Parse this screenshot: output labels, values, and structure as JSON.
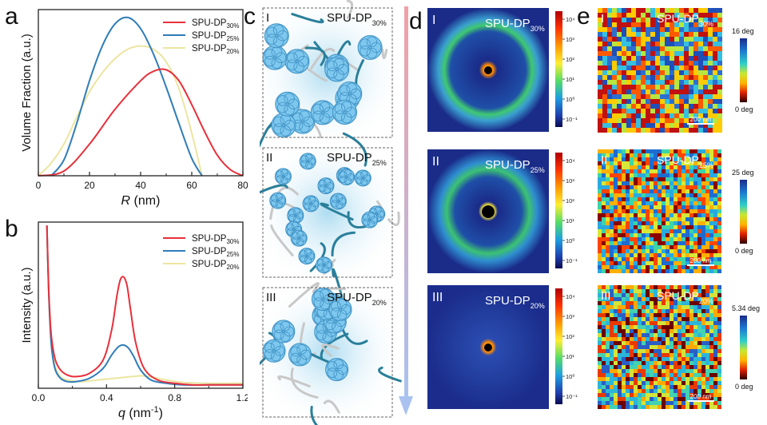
{
  "panels": {
    "a": "a",
    "b": "b",
    "c": "c",
    "d": "d",
    "e": "e"
  },
  "chart_data": [
    {
      "panel": "a",
      "type": "line",
      "title": "",
      "xlabel_var": "R",
      "xlabel_unit": "(nm)",
      "ylabel": "Volume Fraction (a.u.)",
      "xlim": [
        0,
        80
      ],
      "ylim": [
        0,
        1.05
      ],
      "xticks": [
        "0",
        "20",
        "40",
        "60",
        "80"
      ],
      "legend_position": "top-right",
      "series": [
        {
          "name": "SPU-DP",
          "sub": "30%",
          "color": "#e8303a",
          "x": [
            0,
            10,
            20,
            30,
            40,
            45,
            50,
            55,
            60,
            65,
            70,
            75,
            80
          ],
          "y": [
            0,
            0.03,
            0.2,
            0.42,
            0.6,
            0.66,
            0.67,
            0.6,
            0.45,
            0.28,
            0.13,
            0.04,
            0.0
          ]
        },
        {
          "name": "SPU-DP",
          "sub": "25%",
          "color": "#2f7cb8",
          "x": [
            5,
            10,
            15,
            20,
            25,
            30,
            35,
            40,
            45,
            50,
            55,
            60,
            64
          ],
          "y": [
            0,
            0.1,
            0.33,
            0.6,
            0.82,
            0.96,
            1.0,
            0.93,
            0.77,
            0.56,
            0.33,
            0.11,
            0.0
          ]
        },
        {
          "name": "SPU-DP",
          "sub": "20%",
          "color": "#ece5a0",
          "x": [
            0,
            5,
            10,
            15,
            20,
            25,
            30,
            35,
            40,
            45,
            50,
            55,
            60,
            64
          ],
          "y": [
            0,
            0.08,
            0.2,
            0.37,
            0.53,
            0.65,
            0.74,
            0.8,
            0.82,
            0.8,
            0.72,
            0.55,
            0.27,
            0.0
          ]
        }
      ]
    },
    {
      "panel": "b",
      "type": "line",
      "title": "",
      "xlabel_var": "q",
      "xlabel_unit": "(nm",
      "xlabel_exp": "-1",
      "xlabel_close": ")",
      "ylabel": "Intensity (a.u.)",
      "xlim": [
        0,
        1.2
      ],
      "ylim": [
        0,
        1.0
      ],
      "xticks": [
        "0.0",
        "0.4",
        "0.8",
        "1.2"
      ],
      "legend_position": "top-right",
      "series": [
        {
          "name": "SPU-DP",
          "sub": "30%",
          "color": "#e8303a",
          "x": [
            0.05,
            0.06,
            0.07,
            0.08,
            0.1,
            0.13,
            0.17,
            0.22,
            0.3,
            0.38,
            0.43,
            0.46,
            0.48,
            0.5,
            0.52,
            0.54,
            0.57,
            0.62,
            0.7,
            0.8,
            0.9,
            1.0,
            1.1,
            1.2
          ],
          "y": [
            0.98,
            0.62,
            0.4,
            0.28,
            0.17,
            0.11,
            0.08,
            0.07,
            0.09,
            0.17,
            0.35,
            0.55,
            0.65,
            0.67,
            0.62,
            0.48,
            0.28,
            0.12,
            0.05,
            0.03,
            0.02,
            0.02,
            0.02,
            0.02
          ]
        },
        {
          "name": "SPU-DP",
          "sub": "25%",
          "color": "#2f7cb8",
          "x": [
            0.05,
            0.06,
            0.07,
            0.08,
            0.1,
            0.13,
            0.17,
            0.22,
            0.3,
            0.38,
            0.43,
            0.47,
            0.5,
            0.53,
            0.56,
            0.6,
            0.66,
            0.75,
            0.85,
            1.0,
            1.2
          ],
          "y": [
            0.98,
            0.6,
            0.36,
            0.22,
            0.11,
            0.06,
            0.04,
            0.04,
            0.06,
            0.12,
            0.2,
            0.25,
            0.26,
            0.24,
            0.19,
            0.11,
            0.05,
            0.03,
            0.02,
            0.02,
            0.02
          ]
        },
        {
          "name": "SPU-DP",
          "sub": "20%",
          "color": "#ece5a0",
          "x": [
            0.05,
            0.06,
            0.07,
            0.08,
            0.1,
            0.13,
            0.17,
            0.25,
            0.35,
            0.45,
            0.55,
            0.6,
            0.65,
            0.75,
            0.85,
            1.0,
            1.2
          ],
          "y": [
            0.98,
            0.6,
            0.38,
            0.25,
            0.13,
            0.07,
            0.05,
            0.04,
            0.05,
            0.06,
            0.07,
            0.075,
            0.07,
            0.05,
            0.035,
            0.03,
            0.03
          ]
        }
      ]
    }
  ],
  "panel_c": [
    {
      "roman": "I",
      "name": "SPU-DP",
      "sub": "30%"
    },
    {
      "roman": "II",
      "name": "SPU-DP",
      "sub": "25%"
    },
    {
      "roman": "III",
      "name": "SPU-DP",
      "sub": "20%"
    }
  ],
  "panel_d": [
    {
      "roman": "I",
      "name": "SPU-DP",
      "sub": "30%",
      "ticks": [
        "10⁴",
        "10³",
        "10²",
        "10¹",
        "10⁰",
        "10⁻¹"
      ]
    },
    {
      "roman": "II",
      "name": "SPU-DP",
      "sub": "25%",
      "ticks": [
        "10⁴",
        "10³",
        "10²",
        "10¹",
        "10⁰",
        "10⁻¹"
      ]
    },
    {
      "roman": "III",
      "name": "SPU-DP",
      "sub": "20%",
      "ticks": [
        "10⁴",
        "10³",
        "10²",
        "10¹",
        "10⁰",
        "10⁻¹"
      ]
    }
  ],
  "panel_e": [
    {
      "roman": "I",
      "name": "SPU-DP",
      "sub": "30%",
      "max": "16 deg",
      "min": "0 deg",
      "scale": "200 nm"
    },
    {
      "roman": "II",
      "name": "SPU-DP",
      "sub": "25%",
      "max": "25 deg",
      "min": "0 deg",
      "scale": "200 nm"
    },
    {
      "roman": "III",
      "name": "SPU-DP",
      "sub": "20%",
      "max": "5.34 deg",
      "min": "0 deg",
      "scale": "200 nm"
    }
  ],
  "colors": {
    "red": "#e8303a",
    "blue": "#2f7cb8",
    "yellow": "#ece5a0",
    "cluster": "#7ec8ef",
    "chainDark": "#2a7f9a",
    "chainLight": "#c8c8c8"
  }
}
